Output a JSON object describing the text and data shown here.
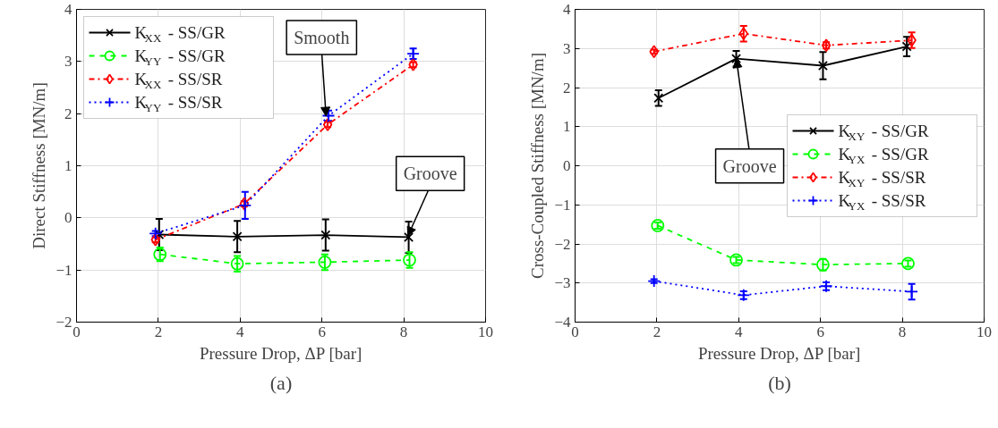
{
  "chart_data": [
    {
      "type": "line",
      "xlabel": "Pressure Drop, ΔP [bar]",
      "ylabel": "Direct Stiffness [MN/m]",
      "xlim": [
        0,
        10
      ],
      "xticks": [
        0,
        2,
        4,
        6,
        8,
        10
      ],
      "ylim": [
        -2,
        4
      ],
      "yticks": [
        -2,
        -1,
        0,
        1,
        2,
        3,
        4
      ],
      "grid": true,
      "legend": "top left",
      "series": [
        {
          "name": "K$_{XX}$ - SS/GR",
          "color": "#000000",
          "marker": "cross",
          "line_style": "solid",
          "x": [
            2.02,
            3.93,
            6.09,
            8.12
          ],
          "values": [
            -0.32,
            -0.36,
            -0.33,
            -0.37
          ],
          "errors": [
            0.3,
            0.3,
            0.3,
            0.3
          ]
        },
        {
          "name": "K$_{YY}$ - SS/GR",
          "color": "#00ff00",
          "marker": "circle",
          "line_style": "dashed",
          "x": [
            2.04,
            3.93,
            6.07,
            8.14
          ],
          "values": [
            -0.7,
            -0.88,
            -0.85,
            -0.81
          ],
          "errors": [
            0.13,
            0.15,
            0.15,
            0.15
          ]
        },
        {
          "name": "K$_{XX}$ - SS/SR",
          "color": "#ff0000",
          "marker": "diamond",
          "line_style": "dashdot",
          "x": [
            1.93,
            4.1,
            6.14,
            8.23
          ],
          "values": [
            -0.42,
            0.27,
            1.79,
            2.94
          ],
          "errors": [
            0.05,
            0.05,
            0.05,
            0.05
          ]
        },
        {
          "name": "K$_{YY}$ - SS/SR",
          "color": "#0000ff",
          "marker": "plus",
          "line_style": "dotted",
          "x": [
            1.93,
            4.12,
            6.16,
            8.23
          ],
          "values": [
            -0.3,
            0.24,
            1.96,
            3.15
          ],
          "errors": [
            0.05,
            0.26,
            0.1,
            0.1
          ]
        }
      ],
      "annotations": [
        {
          "text": "Smooth",
          "x": 6.1,
          "y": 1.95
        },
        {
          "text": "Groove",
          "x": 8.1,
          "y": -0.35
        },
        "(a)"
      ]
    },
    {
      "type": "line",
      "xlabel": "Pressure Drop, ΔP [bar]",
      "ylabel": "Cross-Coupled Stiffness [MN/m]",
      "xlim": [
        0,
        10
      ],
      "xticks": [
        0,
        2,
        4,
        6,
        8,
        10
      ],
      "ylim": [
        -4,
        4
      ],
      "yticks": [
        -4,
        -3,
        -2,
        -1,
        0,
        1,
        2,
        3,
        4
      ],
      "grid": true,
      "legend": "right",
      "series": [
        {
          "name": "K$_{XY}$ - SS/GR",
          "color": "#000000",
          "marker": "cross",
          "line_style": "solid",
          "x": [
            2.04,
            3.94,
            6.06,
            8.11
          ],
          "values": [
            1.73,
            2.74,
            2.56,
            3.05
          ],
          "errors": [
            0.2,
            0.2,
            0.35,
            0.25
          ]
        },
        {
          "name": "K$_{YX}$ - SS/GR",
          "color": "#00ff00",
          "marker": "circle",
          "line_style": "dashed",
          "x": [
            2.02,
            3.94,
            6.06,
            8.14
          ],
          "values": [
            -1.53,
            -2.41,
            -2.53,
            -2.5
          ],
          "errors": [
            0.08,
            0.08,
            0.15,
            0.08
          ]
        },
        {
          "name": "K$_{XY}$ - SS/SR",
          "color": "#ff0000",
          "marker": "diamond",
          "line_style": "dashdot",
          "x": [
            1.93,
            4.12,
            6.14,
            8.23
          ],
          "values": [
            2.92,
            3.38,
            3.08,
            3.21
          ],
          "errors": [
            0.05,
            0.2,
            0.08,
            0.2
          ]
        },
        {
          "name": "K$_{YX}$ - SS/SR",
          "color": "#0000ff",
          "marker": "plus",
          "line_style": "dotted",
          "x": [
            1.93,
            4.12,
            6.14,
            8.23
          ],
          "values": [
            -2.95,
            -3.31,
            -3.08,
            -3.22
          ],
          "errors": [
            0.05,
            0.1,
            0.1,
            0.2
          ]
        }
      ],
      "annotations": [
        {
          "text": "Groove",
          "x": 3.94,
          "y": 2.74
        },
        "(b)"
      ]
    }
  ]
}
